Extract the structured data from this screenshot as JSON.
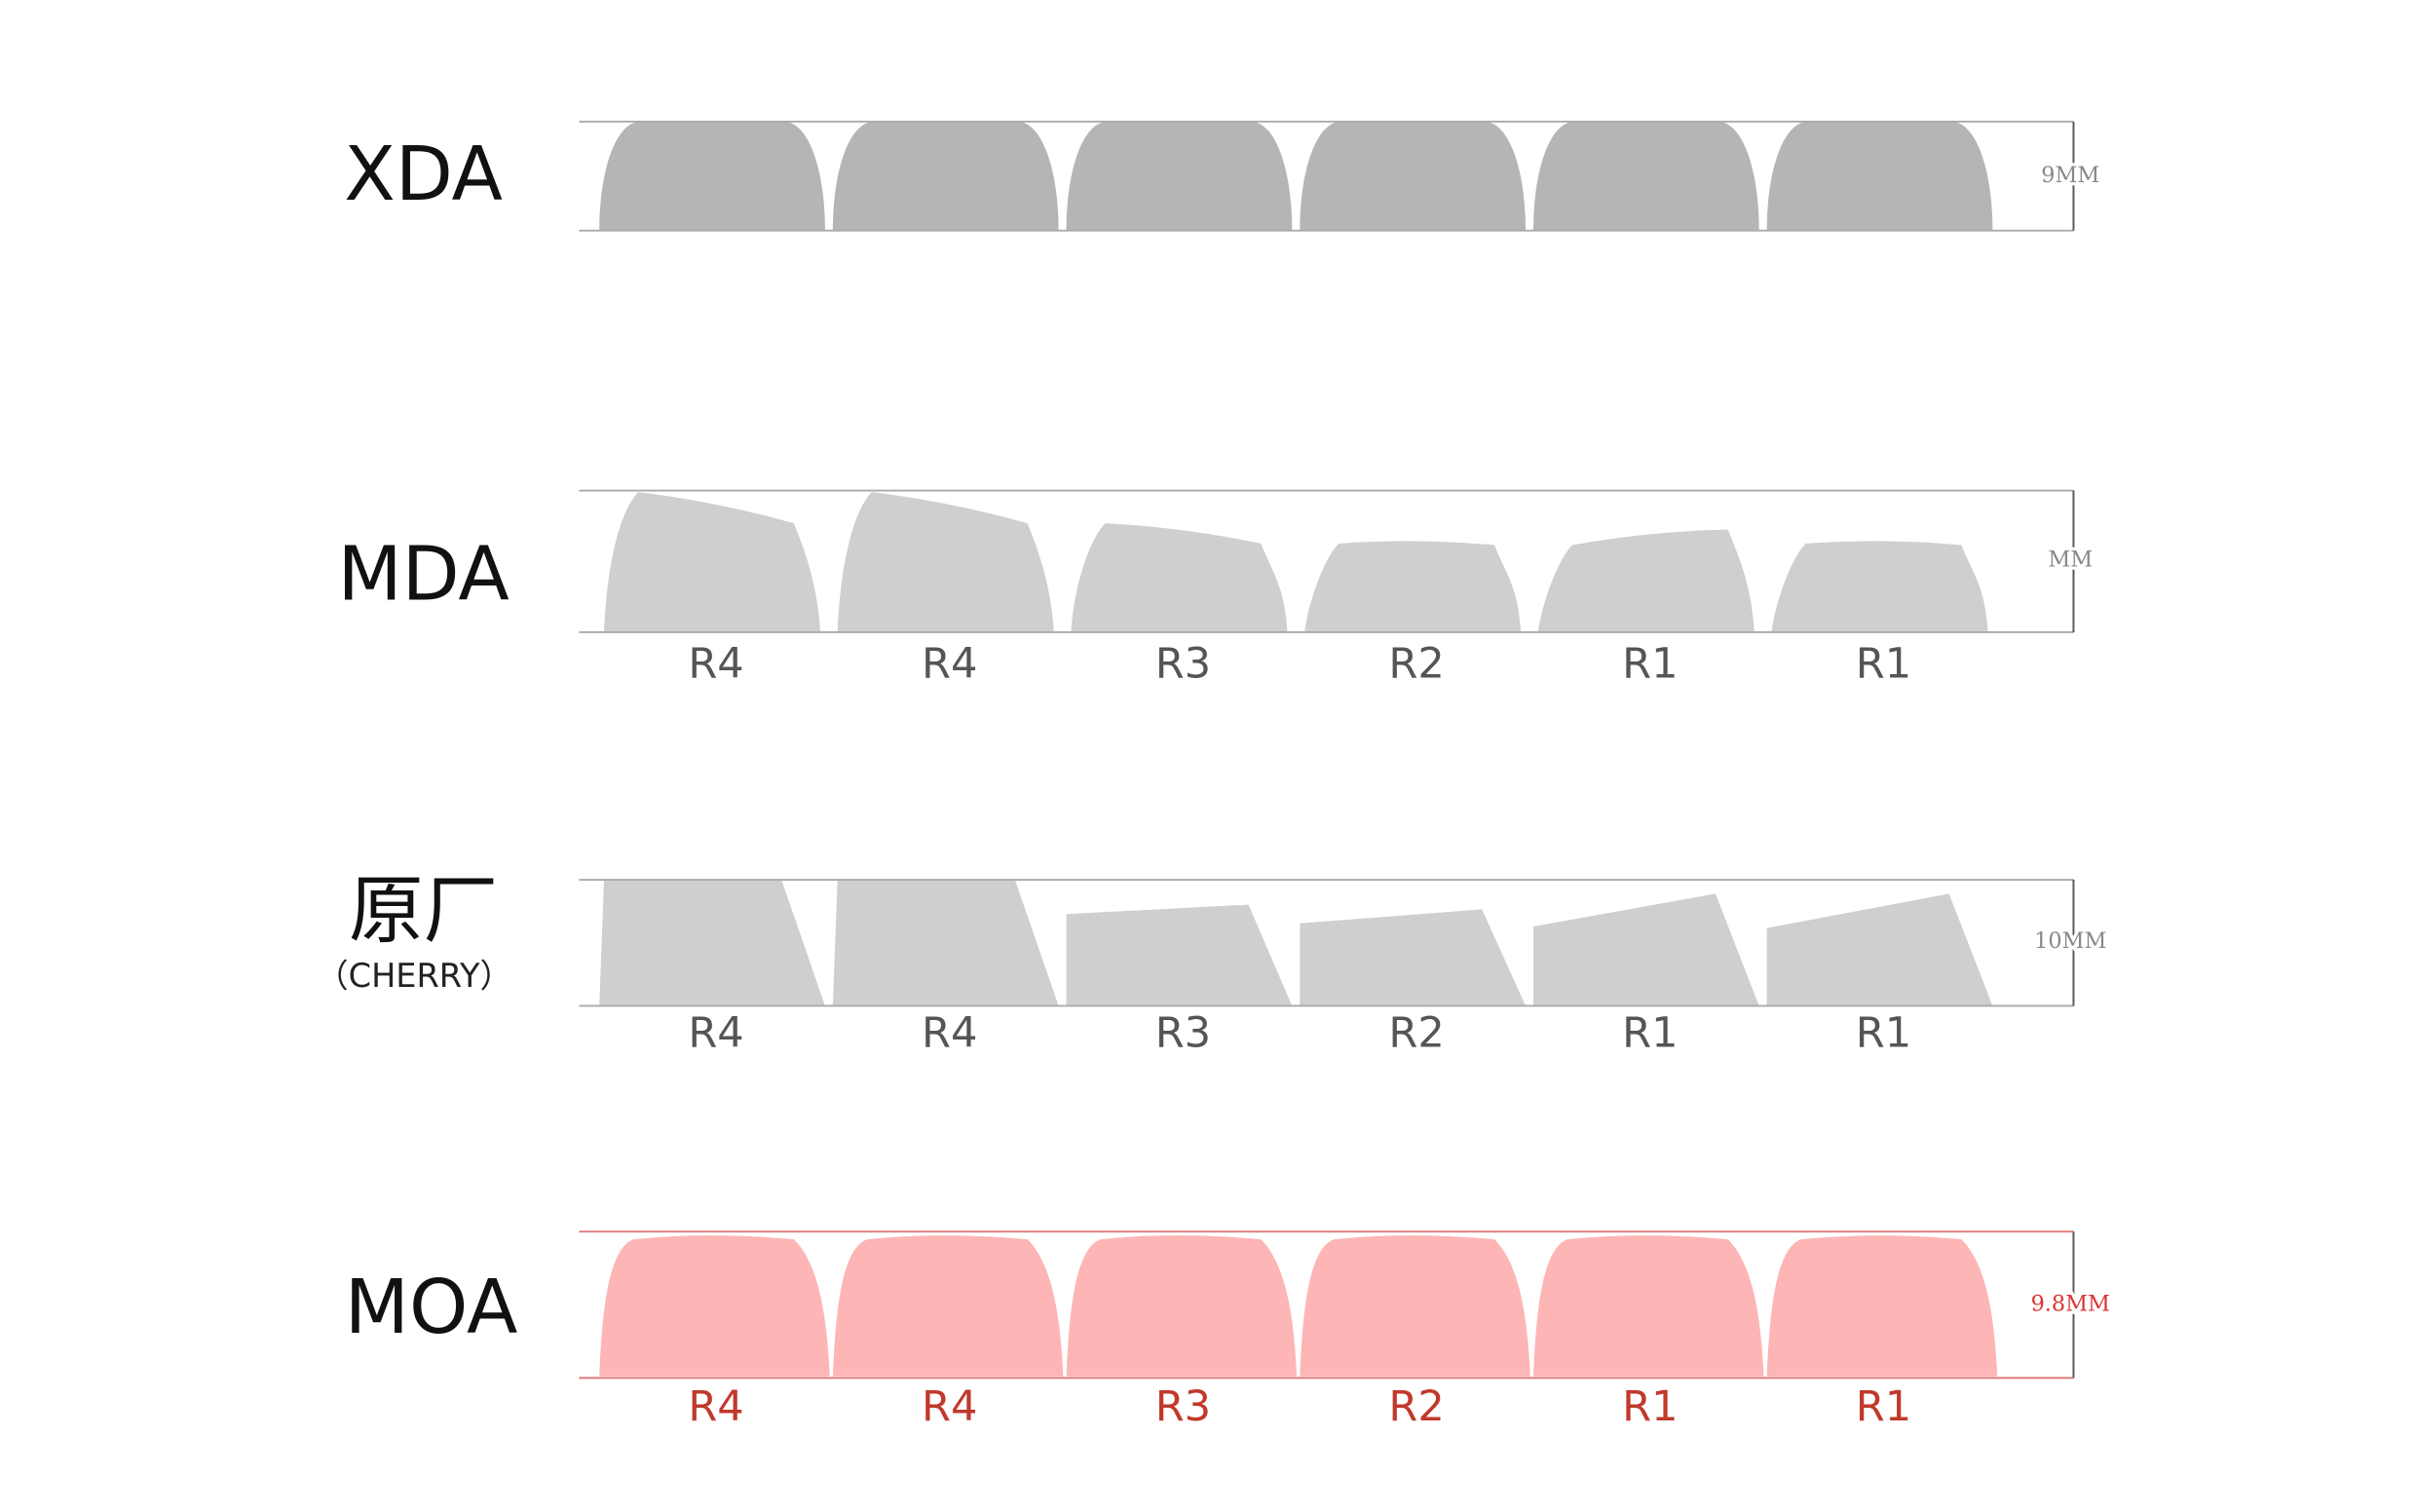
{
  "profiles": [
    {
      "name": "XDA",
      "height": "9MM"
    },
    {
      "name": "MDA",
      "height": "MM",
      "rows": [
        "R4",
        "R4",
        "R3",
        "R2",
        "R1",
        "R1"
      ]
    },
    {
      "name": "原厂",
      "subname": "（CHERRY）",
      "height": "10MM",
      "rows": [
        "R4",
        "R4",
        "R3",
        "R2",
        "R1",
        "R1"
      ]
    },
    {
      "name": "MOA",
      "height": "9.8MM",
      "rows": [
        "R4",
        "R4",
        "R3",
        "R2",
        "R1",
        "R1"
      ]
    }
  ]
}
